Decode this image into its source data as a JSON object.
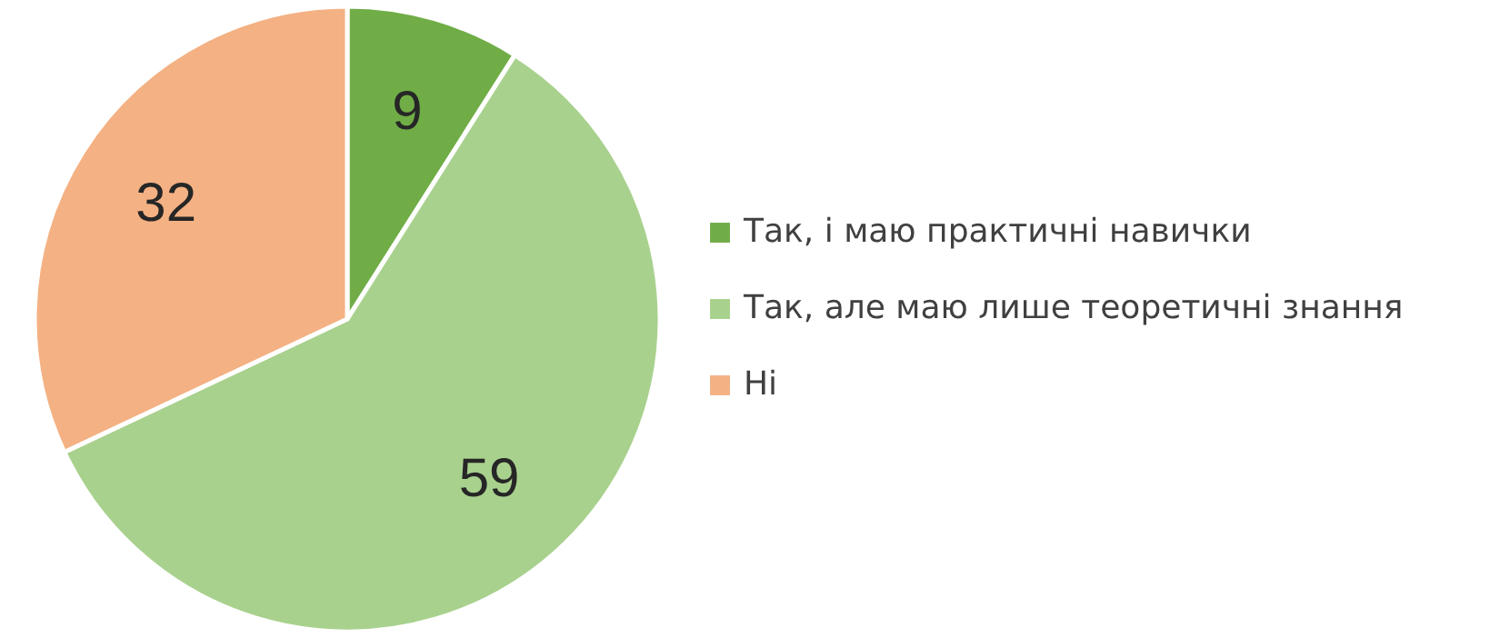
{
  "chart_data": {
    "type": "pie",
    "categories": [
      "Так, і маю практичні навички",
      "Так, але маю лише теоретичні знання",
      "Ні"
    ],
    "values": [
      9,
      59,
      32
    ],
    "colors": [
      "#70ad47",
      "#a9d18e",
      "#f4b183"
    ],
    "data_labels": true,
    "legend": "right"
  }
}
